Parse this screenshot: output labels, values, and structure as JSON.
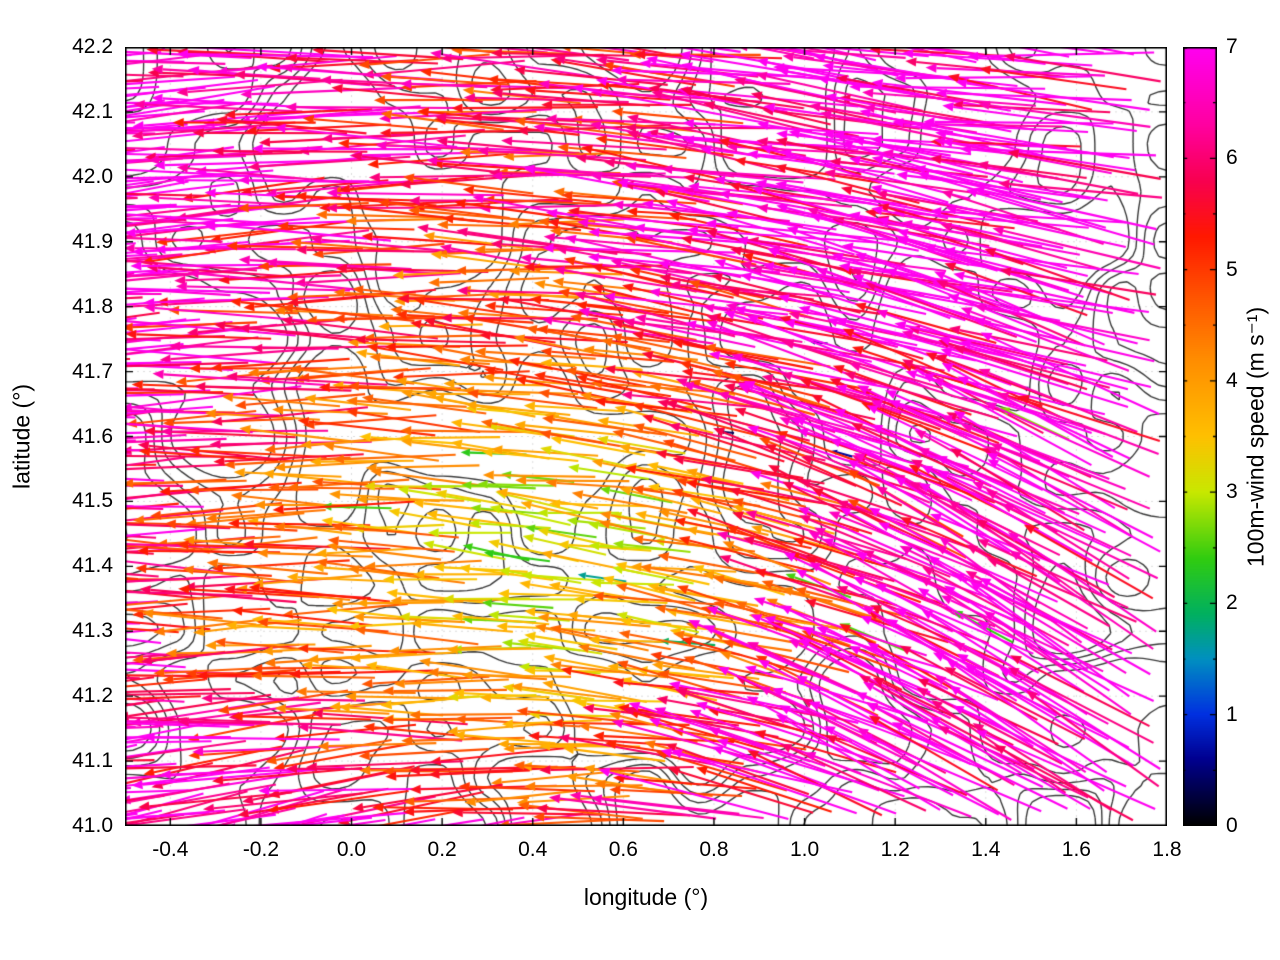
{
  "figure": {
    "background": "#ffffff",
    "border_color": "#000000",
    "contour_color": "#3a3a3a",
    "grid_color": "#dcdcdc"
  },
  "chart_data": {
    "type": "quiver",
    "title": "",
    "xlabel": "longitude (°)",
    "ylabel": "latitude (°)",
    "xlim": [
      -0.5,
      1.8
    ],
    "ylim": [
      41.0,
      42.2
    ],
    "xtick_labels": [
      "-0.4",
      "-0.2",
      "0.0",
      "0.2",
      "0.4",
      "0.6",
      "0.8",
      "1.0",
      "1.2",
      "1.4",
      "1.6",
      "1.8"
    ],
    "xtick_values": [
      -0.4,
      -0.2,
      0.0,
      0.2,
      0.4,
      0.6,
      0.8,
      1.0,
      1.2,
      1.4,
      1.6,
      1.8
    ],
    "ytick_labels": [
      "41.0",
      "41.1",
      "41.2",
      "41.3",
      "41.4",
      "41.5",
      "41.6",
      "41.7",
      "41.8",
      "41.9",
      "42.0",
      "42.1",
      "42.2"
    ],
    "ytick_values": [
      41.0,
      41.1,
      41.2,
      41.3,
      41.4,
      41.5,
      41.6,
      41.7,
      41.8,
      41.9,
      42.0,
      42.1,
      42.2
    ],
    "grid": "faint dotted gridlines at ticks",
    "legend_position": "none",
    "colorbar": {
      "label": "100m-wind speed (m s⁻¹)",
      "min": 0,
      "max": 7,
      "tick_labels": [
        "0",
        "1",
        "2",
        "3",
        "4",
        "5",
        "6",
        "7"
      ],
      "tick_values": [
        0,
        1,
        2,
        3,
        4,
        5,
        6,
        7
      ],
      "minor_tick_step": 0.5,
      "color_stops": [
        [
          0.0,
          "#000000"
        ],
        [
          0.6,
          "#000090"
        ],
        [
          1.0,
          "#0030e0"
        ],
        [
          1.5,
          "#0090c0"
        ],
        [
          1.9,
          "#00b060"
        ],
        [
          2.4,
          "#30cc10"
        ],
        [
          3.0,
          "#c8e800"
        ],
        [
          3.5,
          "#ffc000"
        ],
        [
          4.2,
          "#ff8c00"
        ],
        [
          4.8,
          "#ff5000"
        ],
        [
          5.3,
          "#ff1800"
        ],
        [
          5.8,
          "#f80050"
        ],
        [
          6.3,
          "#ff00a0"
        ],
        [
          7.0,
          "#ff00f0"
        ]
      ]
    },
    "contours": {
      "color": "#3a3a3a",
      "description": "terrain / coastline contour lines over the NE-Iberia domain"
    },
    "wind_field": {
      "description": "100 m wind vectors; arrows point downwind, length and color scale with speed (m/s). Flow is broadly easterly (arrows pointing west), strongest (~7 m/s, magenta) on the flanks and turning to point northwest in the southeast corner; a slower (2.5-5 m/s, green-orange-red) band crosses the centre with sparse calm (<1.5 m/s) spots.",
      "lon_samples": [
        -0.5,
        -0.27,
        -0.04,
        0.19,
        0.42,
        0.65,
        0.88,
        1.11,
        1.34,
        1.57,
        1.8
      ],
      "lat_samples": [
        41.0,
        41.15,
        41.3,
        41.45,
        41.6,
        41.75,
        41.9,
        42.05,
        42.2
      ],
      "speed": [
        [
          7,
          7,
          7,
          7,
          6.2,
          5.2,
          6,
          7,
          7,
          7,
          7
        ],
        [
          7,
          7,
          6.2,
          5,
          4.4,
          4.2,
          5,
          6,
          7,
          7,
          7
        ],
        [
          6.2,
          5.2,
          4.6,
          4,
          3.2,
          3.4,
          4.2,
          5,
          6.2,
          7,
          7
        ],
        [
          6.2,
          5.6,
          5,
          4.2,
          2.8,
          3.2,
          4,
          5,
          6,
          7,
          7
        ],
        [
          7,
          6.2,
          5.2,
          4.6,
          3.6,
          4,
          4.6,
          5.6,
          6.6,
          7,
          7
        ],
        [
          7,
          6.6,
          5.6,
          5,
          4.6,
          5,
          5.6,
          6.2,
          7,
          7,
          7
        ],
        [
          7,
          7,
          6.2,
          5.6,
          5,
          5.6,
          6.2,
          7,
          7,
          7,
          7
        ],
        [
          7,
          7,
          6.6,
          6,
          5.6,
          5.2,
          6.2,
          7,
          7,
          7,
          7
        ],
        [
          7,
          7,
          7,
          6.2,
          5.6,
          5.2,
          6,
          7,
          7,
          7,
          7
        ]
      ],
      "dir_deg": [
        [
          190,
          190,
          195,
          190,
          185,
          180,
          172,
          162,
          155,
          150,
          150
        ],
        [
          185,
          185,
          185,
          180,
          180,
          176,
          170,
          162,
          155,
          150,
          150
        ],
        [
          180,
          180,
          180,
          178,
          175,
          174,
          170,
          165,
          157,
          150,
          150
        ],
        [
          180,
          180,
          180,
          178,
          172,
          174,
          170,
          162,
          155,
          152,
          155
        ],
        [
          182,
          181,
          180,
          178,
          175,
          172,
          170,
          165,
          160,
          158,
          160
        ],
        [
          183,
          182,
          180,
          178,
          176,
          173,
          170,
          168,
          165,
          162,
          165
        ],
        [
          184,
          183,
          181,
          180,
          178,
          175,
          172,
          170,
          168,
          168,
          170
        ],
        [
          185,
          184,
          182,
          180,
          178,
          176,
          174,
          172,
          170,
          172,
          174
        ],
        [
          185,
          184,
          182,
          180,
          178,
          177,
          175,
          173,
          172,
          174,
          176
        ]
      ]
    }
  }
}
